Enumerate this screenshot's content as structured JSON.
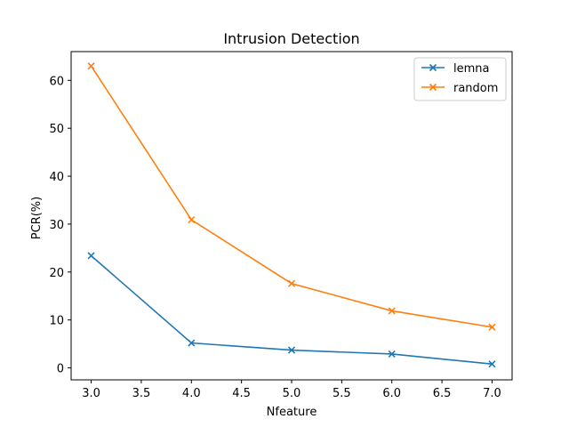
{
  "chart_data": {
    "type": "line",
    "title": "Intrusion Detection",
    "xlabel": "Nfeature",
    "ylabel": "PCR(%)",
    "xlim": [
      2.8,
      7.2
    ],
    "ylim": [
      -2.5,
      66.0
    ],
    "xticks": [
      3.0,
      3.5,
      4.0,
      4.5,
      5.0,
      5.5,
      6.0,
      6.5,
      7.0
    ],
    "xtick_labels": [
      "3.0",
      "3.5",
      "4.0",
      "4.5",
      "5.0",
      "5.5",
      "6.0",
      "6.5",
      "7.0"
    ],
    "yticks": [
      0,
      10,
      20,
      30,
      40,
      50,
      60
    ],
    "ytick_labels": [
      "0",
      "10",
      "20",
      "30",
      "40",
      "50",
      "60"
    ],
    "x": [
      3,
      4,
      5,
      6,
      7
    ],
    "series": [
      {
        "name": "lemna",
        "color": "#1f77b4",
        "marker": "x",
        "values": [
          23.4,
          5.2,
          3.7,
          2.9,
          0.8
        ]
      },
      {
        "name": "random",
        "color": "#ff7f0e",
        "marker": "x",
        "values": [
          63.0,
          30.9,
          17.6,
          11.9,
          8.5
        ]
      }
    ],
    "grid": false,
    "legend_position": "upper right"
  }
}
